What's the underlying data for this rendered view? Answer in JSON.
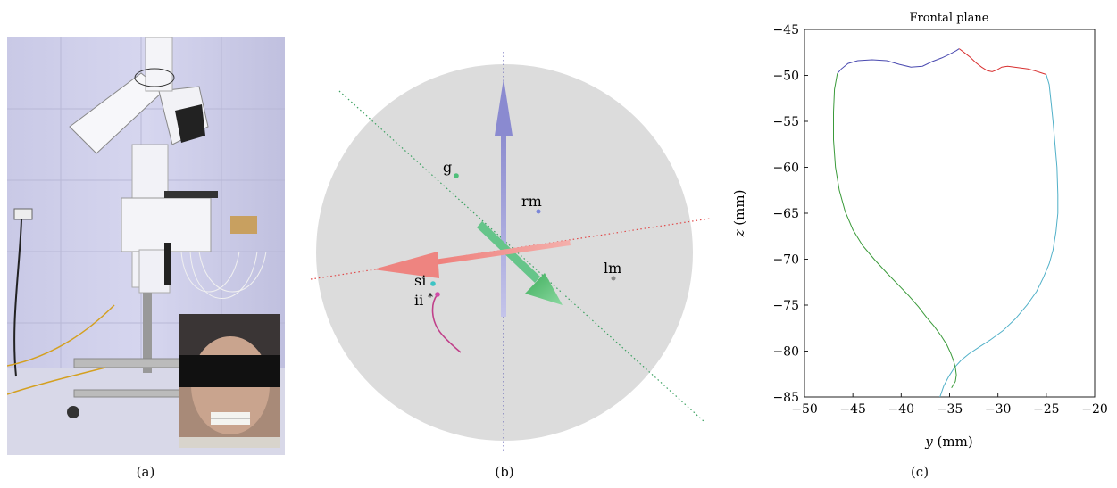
{
  "captions": {
    "a": "(a)",
    "b": "(b)",
    "c": "(c)"
  },
  "panel_b": {
    "landmarks": [
      {
        "label": "g",
        "color": "#4fbf7a"
      },
      {
        "label": "rm",
        "color": "#7a86d8"
      },
      {
        "label": "lm",
        "color": "#888888"
      },
      {
        "label": "si",
        "color": "#3cc4c4"
      },
      {
        "label": "ii",
        "marker": "*",
        "color": "#d04aa8"
      }
    ],
    "colors": {
      "sphere": "#dcdcdc",
      "x_axis": "#f08a86",
      "y_axis": "#66c58a",
      "z_axis": "#9a9ad6",
      "path": "#c0408a"
    }
  },
  "chart_data": {
    "type": "line",
    "title": "Frontal plane",
    "xlabel": "y (mm)",
    "ylabel": "z (mm)",
    "xlim": [
      -50,
      -20
    ],
    "ylim": [
      -85,
      -45
    ],
    "xticks": [
      -50,
      -45,
      -40,
      -35,
      -30,
      -25,
      -20
    ],
    "yticks": [
      -45,
      -50,
      -55,
      -60,
      -65,
      -70,
      -75,
      -80,
      -85
    ],
    "grid": false,
    "series": [
      {
        "color": "#4a4ab0",
        "x": [
          -46.6,
          -46.2,
          -45.5,
          -44.5,
          -43.0,
          -41.5,
          -40.2,
          -39.0,
          -37.8,
          -36.8,
          -35.8,
          -35.0,
          -34.3,
          -34.0
        ],
        "y": [
          -49.8,
          -49.3,
          -48.7,
          -48.4,
          -48.3,
          -48.4,
          -48.8,
          -49.1,
          -49.0,
          -48.5,
          -48.1,
          -47.7,
          -47.3,
          -47.1
        ]
      },
      {
        "color": "#d83030",
        "x": [
          -34.0,
          -33.5,
          -32.9,
          -32.3,
          -31.7,
          -31.1,
          -30.6,
          -30.1,
          -29.6,
          -29.0,
          -28.3,
          -27.6,
          -26.9,
          -26.2,
          -25.6,
          -25.0
        ],
        "y": [
          -47.1,
          -47.5,
          -48.0,
          -48.6,
          -49.1,
          -49.5,
          -49.6,
          -49.4,
          -49.1,
          -49.0,
          -49.1,
          -49.2,
          -49.3,
          -49.5,
          -49.7,
          -49.9
        ]
      },
      {
        "color": "#50b0c8",
        "x": [
          -25.0,
          -24.7,
          -24.5,
          -24.3,
          -24.1,
          -23.9,
          -23.8,
          -23.8,
          -24.0,
          -24.3,
          -24.7,
          -25.3,
          -26.0,
          -27.0,
          -28.2,
          -29.5,
          -30.8,
          -32.0,
          -33.0,
          -33.8,
          -34.5,
          -35.1,
          -35.6,
          -36.0
        ],
        "y": [
          -49.9,
          -51.0,
          -53.0,
          -55.0,
          -57.5,
          -60.0,
          -63.0,
          -65.0,
          -67.0,
          -69.0,
          -70.5,
          -72.0,
          -73.5,
          -75.0,
          -76.5,
          -77.8,
          -78.8,
          -79.6,
          -80.3,
          -81.0,
          -81.8,
          -82.8,
          -83.8,
          -85.0
        ]
      },
      {
        "color": "#3a9a3a",
        "x": [
          -46.6,
          -46.9,
          -47.0,
          -47.0,
          -46.8,
          -46.4,
          -45.8,
          -45.0,
          -44.0,
          -42.8,
          -41.5,
          -40.3,
          -39.2,
          -38.2,
          -37.4,
          -36.6,
          -35.9,
          -35.3,
          -34.9,
          -34.6,
          -34.4,
          -34.3,
          -34.4,
          -34.8
        ],
        "y": [
          -49.8,
          -51.5,
          -54.0,
          -57.0,
          -60.0,
          -62.5,
          -64.8,
          -66.8,
          -68.5,
          -70.0,
          -71.5,
          -72.8,
          -74.0,
          -75.2,
          -76.3,
          -77.3,
          -78.3,
          -79.3,
          -80.2,
          -81.0,
          -81.8,
          -82.6,
          -83.3,
          -84.0
        ]
      }
    ]
  }
}
